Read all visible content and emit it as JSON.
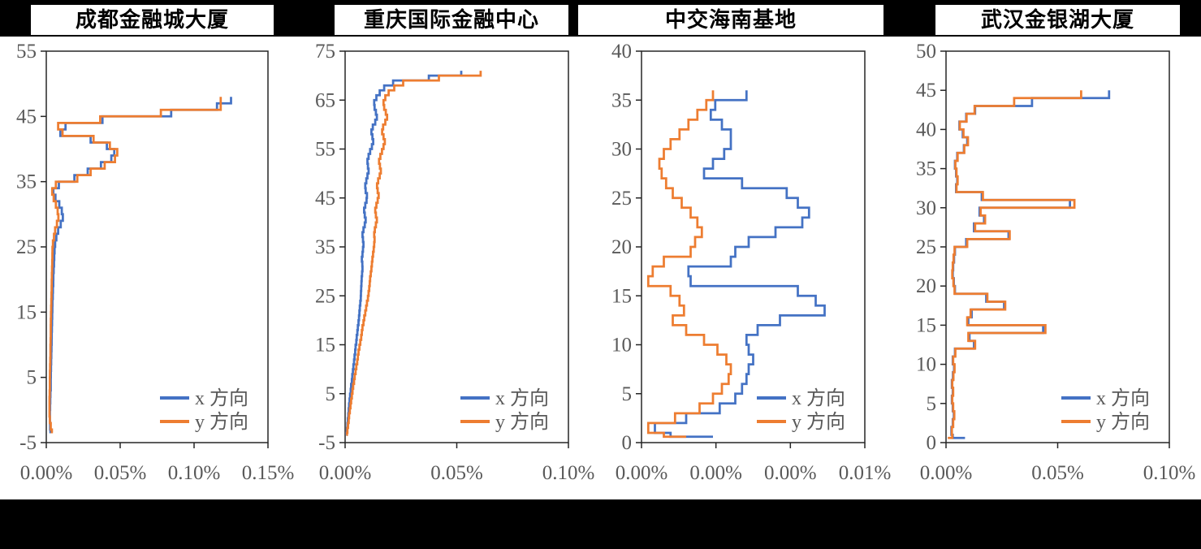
{
  "page": {
    "background_color": "#000000",
    "panel_color": "#ffffff"
  },
  "style": {
    "series_x_color": "#4472C4",
    "series_y_color": "#ED7D31",
    "axis_text_color": "#595959",
    "axis_line_color": "#262626"
  },
  "legend": {
    "series_x_label": "x 方向",
    "series_y_label": "y 方向",
    "position": "inside-bottom-right"
  },
  "chart_data": [
    {
      "type": "line",
      "subtype": "step-profile",
      "title": "成都金融城大厦",
      "grid": false,
      "x_axis": {
        "tick_labels": [
          "0.00%",
          "0.05%",
          "0.10%",
          "0.15%"
        ],
        "min_percent": 0,
        "max_percent": 0.15
      },
      "y_axis": {
        "tick_labels": [
          "55",
          "45",
          "35",
          "25",
          "15",
          "5",
          "-5"
        ],
        "tick_values": [
          55,
          45,
          35,
          25,
          15,
          5,
          -5
        ],
        "min_floor": -5,
        "max_floor": 55
      },
      "floor_start": -4,
      "series": [
        {
          "name": "x 方向",
          "color_key": "series_x_color",
          "values_percent": [
            0.003,
            0.0028,
            0.0026,
            0.0025,
            0.0025,
            0.0026,
            0.0027,
            0.0028,
            0.003,
            0.003,
            0.0031,
            0.0032,
            0.0033,
            0.0034,
            0.0035,
            0.0036,
            0.0037,
            0.0038,
            0.0039,
            0.004,
            0.0041,
            0.0042,
            0.0044,
            0.0045,
            0.0047,
            0.0048,
            0.005,
            0.0052,
            0.0054,
            0.0056,
            0.006,
            0.0068,
            0.008,
            0.0098,
            0.0112,
            0.0105,
            0.0088,
            0.0062,
            0.0048,
            0.0085,
            0.019,
            0.028,
            0.037,
            0.044,
            0.046,
            0.041,
            0.03,
            0.0095,
            0.013,
            0.038,
            0.0845,
            0.1155,
            0.125
          ]
        },
        {
          "name": "y 方向",
          "color_key": "series_y_color",
          "values_percent": [
            0.0045,
            0.0038,
            0.003,
            0.0024,
            0.0022,
            0.0022,
            0.0022,
            0.0023,
            0.0024,
            0.0024,
            0.0025,
            0.0026,
            0.0027,
            0.0028,
            0.0028,
            0.0029,
            0.003,
            0.003,
            0.0031,
            0.0032,
            0.0033,
            0.0034,
            0.0035,
            0.0036,
            0.0037,
            0.0038,
            0.0039,
            0.004,
            0.0041,
            0.0042,
            0.0045,
            0.0052,
            0.006,
            0.0072,
            0.0082,
            0.0077,
            0.0065,
            0.005,
            0.004,
            0.0065,
            0.021,
            0.03,
            0.0395,
            0.0465,
            0.048,
            0.043,
            0.032,
            0.011,
            0.008,
            0.0365,
            0.0775,
            0.118,
            0.118
          ]
        }
      ]
    },
    {
      "type": "line",
      "subtype": "step-profile",
      "title": "重庆国际金融中心",
      "grid": false,
      "x_axis": {
        "tick_labels": [
          "0.00%",
          "0.05%",
          "0.10%"
        ],
        "min_percent": 0,
        "max_percent": 0.1
      },
      "y_axis": {
        "tick_labels": [
          "75",
          "65",
          "55",
          "45",
          "35",
          "25",
          "15",
          "5",
          "-5"
        ],
        "tick_values": [
          75,
          65,
          55,
          45,
          35,
          25,
          15,
          5,
          -5
        ],
        "min_floor": -5,
        "max_floor": 75
      },
      "floor_start": -4,
      "series": [
        {
          "name": "x 方向",
          "color_key": "series_x_color",
          "values_percent": [
            0.0005,
            0.0006,
            0.0008,
            0.001,
            0.0012,
            0.0014,
            0.0016,
            0.0018,
            0.002,
            0.0022,
            0.0025,
            0.0027,
            0.003,
            0.0032,
            0.0035,
            0.0037,
            0.004,
            0.0042,
            0.0045,
            0.0047,
            0.005,
            0.0052,
            0.0055,
            0.0057,
            0.006,
            0.0062,
            0.0064,
            0.0066,
            0.0068,
            0.007,
            0.0071,
            0.0072,
            0.0073,
            0.0074,
            0.0076,
            0.0078,
            0.0077,
            0.0075,
            0.0078,
            0.008,
            0.0082,
            0.008,
            0.0078,
            0.0082,
            0.0088,
            0.0092,
            0.0088,
            0.0085,
            0.009,
            0.0096,
            0.0098,
            0.0092,
            0.009,
            0.0095,
            0.01,
            0.0105,
            0.0102,
            0.01,
            0.0105,
            0.0112,
            0.012,
            0.0126,
            0.0122,
            0.0118,
            0.0124,
            0.0135,
            0.0142,
            0.0138,
            0.0132,
            0.013,
            0.014,
            0.0155,
            0.0175,
            0.0215,
            0.0375,
            0.052
          ]
        },
        {
          "name": "y 方向",
          "color_key": "series_y_color",
          "values_percent": [
            0.0006,
            0.0008,
            0.001,
            0.0013,
            0.0016,
            0.0018,
            0.0021,
            0.0024,
            0.0027,
            0.003,
            0.0033,
            0.0036,
            0.004,
            0.0043,
            0.0047,
            0.005,
            0.0054,
            0.0057,
            0.006,
            0.0064,
            0.0068,
            0.0072,
            0.0075,
            0.0078,
            0.0082,
            0.0086,
            0.009,
            0.0094,
            0.0098,
            0.0102,
            0.0105,
            0.0108,
            0.011,
            0.0112,
            0.0115,
            0.0118,
            0.012,
            0.0122,
            0.0125,
            0.0128,
            0.013,
            0.0132,
            0.013,
            0.0133,
            0.0138,
            0.0142,
            0.0138,
            0.0135,
            0.014,
            0.0146,
            0.015,
            0.0146,
            0.0143,
            0.0148,
            0.0155,
            0.016,
            0.0156,
            0.0152,
            0.0158,
            0.0165,
            0.0172,
            0.0178,
            0.0172,
            0.0166,
            0.017,
            0.018,
            0.0188,
            0.0182,
            0.0175,
            0.0172,
            0.018,
            0.0195,
            0.022,
            0.026,
            0.042,
            0.0607
          ]
        }
      ]
    },
    {
      "type": "line",
      "subtype": "step-profile",
      "title": "中交海南基地",
      "grid": false,
      "x_axis": {
        "tick_labels": [
          "0.00%",
          "0.00%",
          "0.00%",
          "0.01%"
        ],
        "min_percent": 0,
        "max_percent": 0.01
      },
      "y_axis": {
        "tick_labels": [
          "40",
          "35",
          "30",
          "25",
          "20",
          "15",
          "10",
          "5",
          "0"
        ],
        "tick_values": [
          40,
          35,
          30,
          25,
          20,
          15,
          10,
          5,
          0
        ],
        "min_floor": 0,
        "max_floor": 40
      },
      "floor_start": 0,
      "series": [
        {
          "name": "x 方向",
          "color_key": "series_x_color",
          "values_percent": [
            0.0032,
            0.0013,
            0.0006,
            0.002,
            0.0035,
            0.0042,
            0.0045,
            0.0047,
            0.0048,
            0.005,
            0.0048,
            0.0047,
            0.0052,
            0.0062,
            0.0082,
            0.0078,
            0.007,
            0.0022,
            0.0021,
            0.004,
            0.0042,
            0.0048,
            0.006,
            0.0072,
            0.0075,
            0.007,
            0.0065,
            0.0045,
            0.0028,
            0.0032,
            0.0037,
            0.004,
            0.004,
            0.0036,
            0.0031,
            0.0033,
            0.0047
          ]
        },
        {
          "name": "y 方向",
          "color_key": "series_y_color",
          "values_percent": [
            0.002,
            0.001,
            0.0003,
            0.0015,
            0.0026,
            0.0032,
            0.0036,
            0.0039,
            0.004,
            0.0038,
            0.0034,
            0.0028,
            0.002,
            0.0014,
            0.0019,
            0.0017,
            0.0013,
            0.0003,
            0.0005,
            0.001,
            0.0022,
            0.0024,
            0.0027,
            0.0025,
            0.0022,
            0.0018,
            0.0014,
            0.0011,
            0.0009,
            0.0008,
            0.001,
            0.0013,
            0.0017,
            0.0021,
            0.0025,
            0.0029,
            0.0032
          ]
        }
      ]
    },
    {
      "type": "line",
      "subtype": "step-profile",
      "title": "武汉金银湖大厦",
      "grid": false,
      "x_axis": {
        "tick_labels": [
          "0.00%",
          "0.05%",
          "0.10%"
        ],
        "min_percent": 0,
        "max_percent": 0.1
      },
      "y_axis": {
        "tick_labels": [
          "50",
          "45",
          "40",
          "35",
          "30",
          "25",
          "20",
          "15",
          "10",
          "5",
          "0"
        ],
        "tick_values": [
          50,
          45,
          40,
          35,
          30,
          25,
          20,
          15,
          10,
          5,
          0
        ],
        "min_floor": 0,
        "max_floor": 50
      },
      "floor_start": 0,
      "series": [
        {
          "name": "x 方向",
          "color_key": "series_x_color",
          "values_percent": [
            0.0085,
            0.003,
            0.0024,
            0.003,
            0.0035,
            0.003,
            0.0026,
            0.003,
            0.0026,
            0.0031,
            0.0036,
            0.003,
            0.004,
            0.0125,
            0.0105,
            0.0435,
            0.01,
            0.0115,
            0.026,
            0.018,
            0.004,
            0.0035,
            0.003,
            0.0032,
            0.0036,
            0.004,
            0.009,
            0.028,
            0.0125,
            0.017,
            0.015,
            0.0555,
            0.016,
            0.0045,
            0.005,
            0.0045,
            0.004,
            0.005,
            0.008,
            0.0095,
            0.0075,
            0.006,
            0.009,
            0.013,
            0.0385,
            0.073
          ]
        },
        {
          "name": "y 方向",
          "color_key": "series_y_color",
          "values_percent": [
            0.0008,
            0.0028,
            0.0026,
            0.0032,
            0.0037,
            0.0032,
            0.0028,
            0.0032,
            0.0028,
            0.0033,
            0.0038,
            0.0032,
            0.0042,
            0.013,
            0.01,
            0.0445,
            0.0095,
            0.011,
            0.0265,
            0.0185,
            0.0038,
            0.0033,
            0.0028,
            0.003,
            0.0034,
            0.0038,
            0.0095,
            0.0285,
            0.013,
            0.0175,
            0.0155,
            0.0575,
            0.0165,
            0.0047,
            0.0052,
            0.0047,
            0.0042,
            0.0052,
            0.0082,
            0.0098,
            0.0078,
            0.0062,
            0.0092,
            0.0128,
            0.0305,
            0.0605
          ]
        }
      ]
    }
  ]
}
